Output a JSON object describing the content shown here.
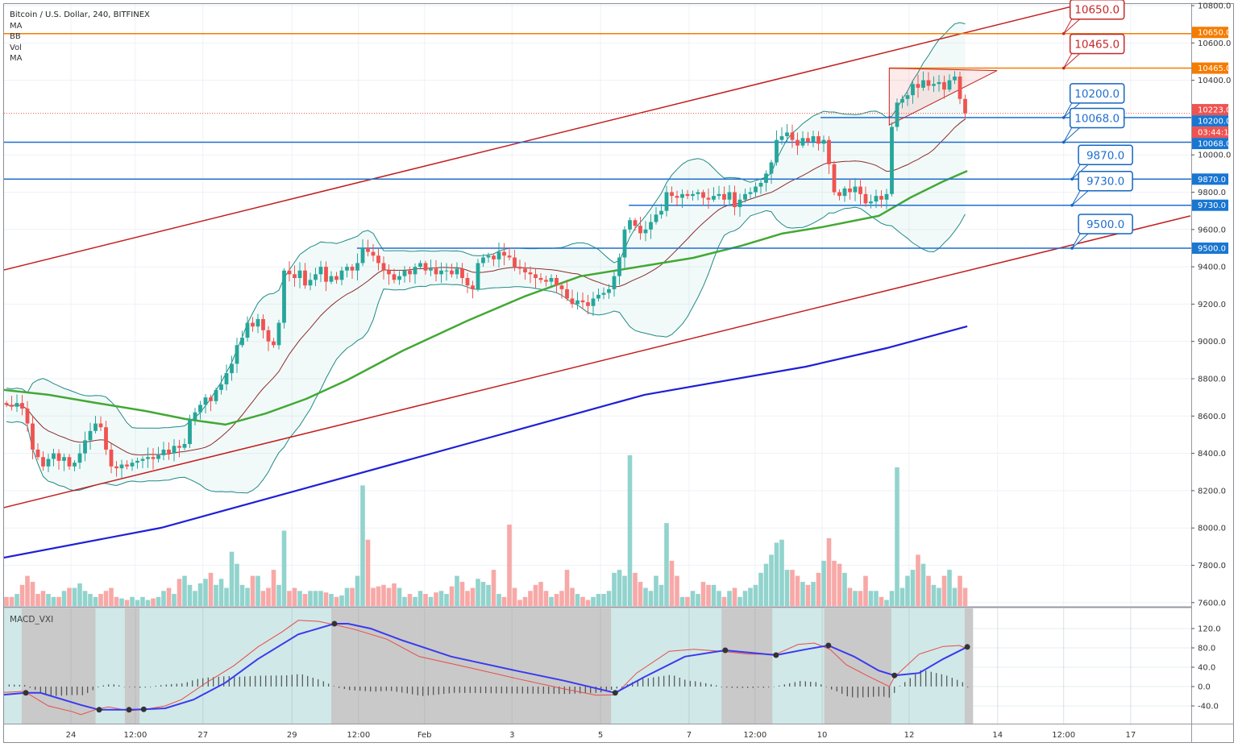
{
  "legend": {
    "title": "Bitcoin / U.S. Dollar, 240, BITFINEX",
    "items": [
      "MA",
      "BB",
      "Vol",
      "MA"
    ]
  },
  "macd_title": "MACD_VXI",
  "colors": {
    "up": "#26a69a",
    "down": "#ef5350",
    "bb": "#1e8a84",
    "bb_basis": "#8b2c2c",
    "ma_green": "#43a835",
    "ma_blue": "#1f1fd6",
    "channel": "#c21f1f",
    "orange": "#f57c00",
    "level_blue": "#1e6fd0",
    "macd_signal": "#3a3aee",
    "macd_line": "#e84b4b"
  },
  "chart_data": {
    "type": "candlestick",
    "symbol": "Bitcoin / U.S. Dollar, 240, BITFINEX",
    "ylim": [
      7560,
      10820
    ],
    "price_ticks": [
      10800,
      10600,
      10400,
      10000,
      9800,
      9600,
      9400,
      9200,
      9000,
      8800,
      8600,
      8400,
      8200,
      8000,
      7800,
      7600
    ],
    "time_ticks": [
      {
        "label": "24",
        "i": 12.3
      },
      {
        "label": "12:00",
        "i": 24.6
      },
      {
        "label": "27",
        "i": 37.5
      },
      {
        "label": "29",
        "i": 54.5
      },
      {
        "label": "12:00",
        "i": 67.2
      },
      {
        "label": "Feb",
        "i": 79.8
      },
      {
        "label": "3",
        "i": 96.5
      },
      {
        "label": "5",
        "i": 113.4
      },
      {
        "label": "7",
        "i": 130.3
      },
      {
        "label": "12:00",
        "i": 142.9
      },
      {
        "label": "10",
        "i": 155.7
      },
      {
        "label": "12",
        "i": 172.3
      },
      {
        "label": "14",
        "i": 189.2
      },
      {
        "label": "12:00",
        "i": 201.8
      },
      {
        "label": "17",
        "i": 214.6
      }
    ],
    "closes": [
      8660,
      8650,
      8670,
      8640,
      8560,
      8420,
      8380,
      8330,
      8370,
      8400,
      8360,
      8380,
      8330,
      8350,
      8400,
      8470,
      8520,
      8560,
      8540,
      8420,
      8330,
      8320,
      8340,
      8330,
      8350,
      8360,
      8370,
      8380,
      8370,
      8390,
      8420,
      8400,
      8440,
      8430,
      8450,
      8580,
      8620,
      8660,
      8700,
      8680,
      8740,
      8770,
      8830,
      8880,
      8980,
      9020,
      9100,
      9080,
      9120,
      9060,
      9000,
      8980,
      9100,
      9380,
      9360,
      9340,
      9380,
      9300,
      9330,
      9360,
      9400,
      9320,
      9350,
      9330,
      9380,
      9400,
      9380,
      9420,
      9500,
      9480,
      9460,
      9420,
      9380,
      9360,
      9330,
      9350,
      9380,
      9360,
      9400,
      9420,
      9380,
      9390,
      9360,
      9380,
      9380,
      9360,
      9390,
      9340,
      9300,
      9280,
      9420,
      9450,
      9460,
      9440,
      9480,
      9460,
      9450,
      9400,
      9390,
      9370,
      9360,
      9340,
      9330,
      9320,
      9340,
      9300,
      9280,
      9230,
      9200,
      9220,
      9210,
      9190,
      9230,
      9250,
      9260,
      9280,
      9350,
      9450,
      9600,
      9650,
      9620,
      9580,
      9600,
      9640,
      9680,
      9700,
      9800,
      9780,
      9770,
      9790,
      9780,
      9790,
      9800,
      9770,
      9760,
      9780,
      9790,
      9760,
      9800,
      9720,
      9760,
      9790,
      9800,
      9830,
      9850,
      9900,
      9960,
      10080,
      10100,
      10120,
      10080,
      10050,
      10090,
      10070,
      10100,
      10060,
      10080,
      9950,
      9800,
      9780,
      9820,
      9800,
      9830,
      9790,
      9740,
      9750,
      9780,
      9760,
      9790,
      10150,
      10280,
      10300,
      10320,
      10380,
      10360,
      10400,
      10370,
      10380,
      10390,
      10350,
      10400,
      10420,
      10300,
      10223
    ],
    "volume": [
      6,
      6,
      8,
      14,
      20,
      16,
      8,
      10,
      8,
      6,
      6,
      10,
      12,
      12,
      15,
      10,
      8,
      6,
      8,
      10,
      12,
      6,
      5,
      4,
      6,
      4,
      6,
      4,
      5,
      6,
      10,
      12,
      8,
      18,
      20,
      14,
      10,
      15,
      18,
      22,
      14,
      18,
      12,
      36,
      28,
      14,
      12,
      20,
      20,
      10,
      12,
      24,
      14,
      50,
      10,
      12,
      10,
      8,
      10,
      10,
      10,
      9,
      8,
      6,
      7,
      12,
      12,
      20,
      80,
      44,
      12,
      13,
      14,
      12,
      15,
      12,
      6,
      8,
      6,
      10,
      8,
      6,
      9,
      10,
      8,
      13,
      20,
      16,
      10,
      12,
      18,
      16,
      14,
      24,
      8,
      6,
      54,
      12,
      4,
      6,
      10,
      14,
      16,
      10,
      6,
      8,
      10,
      24,
      12,
      8,
      6,
      4,
      6,
      8,
      8,
      10,
      22,
      24,
      20,
      100,
      22,
      16,
      12,
      10,
      20,
      14,
      55,
      30,
      20,
      6,
      6,
      10,
      8,
      16,
      14,
      14,
      10,
      6,
      10,
      12,
      6,
      10,
      12,
      14,
      22,
      28,
      34,
      42,
      44,
      24,
      24,
      20,
      16,
      14,
      16,
      22,
      30,
      45,
      30,
      28,
      22,
      12,
      10,
      10,
      20,
      10,
      10,
      6,
      4,
      10,
      92,
      12,
      20,
      24,
      34,
      28,
      20,
      14,
      12,
      20,
      24,
      12,
      20,
      12
    ],
    "ma_green": [
      [
        -0.5,
        8740
      ],
      [
        8,
        8714
      ],
      [
        17.2,
        8670
      ],
      [
        26.5,
        8627
      ],
      [
        34.2,
        8584
      ],
      [
        41.8,
        8554
      ],
      [
        49.5,
        8614
      ],
      [
        57.2,
        8692
      ],
      [
        64.9,
        8791
      ],
      [
        75.7,
        8951
      ],
      [
        88,
        9111
      ],
      [
        98.8,
        9240
      ],
      [
        109.5,
        9349
      ],
      [
        121.8,
        9405
      ],
      [
        131.1,
        9448
      ],
      [
        140.3,
        9513
      ],
      [
        148,
        9578
      ],
      [
        155.7,
        9613
      ],
      [
        166.5,
        9673
      ],
      [
        172.6,
        9772
      ],
      [
        178.8,
        9858
      ],
      [
        183.4,
        9914
      ]
    ],
    "ma_blue": [
      [
        -0.5,
        7841
      ],
      [
        29.5,
        8001
      ],
      [
        60.3,
        8238
      ],
      [
        91.1,
        8476
      ],
      [
        121.8,
        8714
      ],
      [
        152.6,
        8865
      ],
      [
        168,
        8964
      ],
      [
        183.4,
        9081
      ]
    ],
    "channel": [
      {
        "from": [
          -0.5,
          9383
        ],
        "to": [
          203.4,
          10796
        ]
      },
      {
        "from": [
          -0.5,
          8109
        ],
        "to": [
          226,
          9673
        ]
      }
    ],
    "levels": [
      {
        "price": 10650,
        "label": "10650.0",
        "color": "orange",
        "start": -1,
        "callout": "red",
        "ci": 201.8
      },
      {
        "price": 10465,
        "label": "10465.0",
        "color": "orange",
        "start": 168.5,
        "callout": "red",
        "ci": 201.8
      },
      {
        "price": 10200,
        "label": "10200.0",
        "color": "level_blue",
        "start": 155.4,
        "callout": "blue",
        "ci": 201.8
      },
      {
        "price": 10068,
        "label": "10068.0",
        "color": "level_blue",
        "start": -1,
        "callout": "blue",
        "ci": 201.8
      },
      {
        "price": 9870,
        "label": "9870.0",
        "color": "level_blue",
        "start": -1,
        "callout": "blue",
        "ci": 203.4
      },
      {
        "price": 9730,
        "label": "9730.0",
        "color": "level_blue",
        "start": 118.8,
        "callout": "blue",
        "ci": 203.4
      },
      {
        "price": 9500,
        "label": "9500.0",
        "color": "level_blue",
        "start": 66.9,
        "callout": "blue",
        "ci": 203.4
      }
    ],
    "last_price": {
      "value": 10223,
      "label": "10223.0",
      "countdown": "03:44:17"
    },
    "pattern_triangle": [
      [
        168.5,
        10465
      ],
      [
        189.1,
        10452
      ],
      [
        168.5,
        10160
      ]
    ],
    "macd": {
      "ticks": [
        120,
        80,
        40,
        0,
        -40
      ],
      "tick_labels": [
        "120.0",
        "80.0",
        "40.0",
        "0.0",
        "-40.0"
      ],
      "signal": [
        [
          -0.5,
          -17
        ],
        [
          3.7,
          -13
        ],
        [
          6.5,
          -13
        ],
        [
          14.2,
          -38
        ],
        [
          17.7,
          -48
        ],
        [
          23.4,
          -48
        ],
        [
          26.2,
          -47
        ],
        [
          30.3,
          -45
        ],
        [
          35.7,
          -27
        ],
        [
          41.8,
          8
        ],
        [
          48,
          57
        ],
        [
          55.7,
          108
        ],
        [
          62.6,
          130
        ],
        [
          65.2,
          130
        ],
        [
          69.5,
          120
        ],
        [
          75.7,
          95
        ],
        [
          84.9,
          62
        ],
        [
          97.2,
          33
        ],
        [
          106.5,
          12
        ],
        [
          116.2,
          -13
        ],
        [
          121.8,
          20
        ],
        [
          129.5,
          62
        ],
        [
          137.2,
          75
        ],
        [
          146.9,
          65
        ],
        [
          152.6,
          77
        ],
        [
          156.9,
          85
        ],
        [
          161.8,
          62
        ],
        [
          166.5,
          33
        ],
        [
          169.5,
          23
        ],
        [
          174.2,
          28
        ],
        [
          178.8,
          57
        ],
        [
          183.4,
          82
        ]
      ],
      "line": [
        [
          -0.5,
          -12
        ],
        [
          3.4,
          -10
        ],
        [
          8,
          -40
        ],
        [
          12.6,
          -52
        ],
        [
          14.2,
          -58
        ],
        [
          17.2,
          -47
        ],
        [
          19.5,
          -42
        ],
        [
          23.4,
          -50
        ],
        [
          26.5,
          -47
        ],
        [
          30.3,
          -40
        ],
        [
          33.4,
          -27
        ],
        [
          38,
          7
        ],
        [
          43.4,
          43
        ],
        [
          48,
          82
        ],
        [
          52.6,
          113
        ],
        [
          55.7,
          137
        ],
        [
          59.5,
          135
        ],
        [
          62.6,
          128
        ],
        [
          66.5,
          118
        ],
        [
          72.6,
          98
        ],
        [
          78.8,
          62
        ],
        [
          88,
          40
        ],
        [
          97.2,
          17
        ],
        [
          106.5,
          -5
        ],
        [
          112.6,
          -18
        ],
        [
          116.2,
          -17
        ],
        [
          120.3,
          28
        ],
        [
          126.5,
          73
        ],
        [
          131.2,
          77
        ],
        [
          136.5,
          73
        ],
        [
          141.8,
          67
        ],
        [
          146.9,
          67
        ],
        [
          151.1,
          87
        ],
        [
          154.2,
          90
        ],
        [
          157.2,
          77
        ],
        [
          160.3,
          45
        ],
        [
          164.2,
          23
        ],
        [
          168.5,
          0
        ],
        [
          169.5,
          20
        ],
        [
          174.2,
          67
        ],
        [
          178.8,
          83
        ],
        [
          181.9,
          85
        ],
        [
          183.4,
          78
        ]
      ],
      "crosses": [
        3.7,
        17.7,
        23.4,
        26.2,
        62.6,
        116.2,
        137.2,
        146.9,
        156.9,
        169.5,
        183.4
      ],
      "bear_zones": [
        [
          2.9,
          17
        ],
        [
          22.6,
          25.4
        ],
        [
          62,
          115.4
        ],
        [
          136.5,
          146.2
        ],
        [
          156.1,
          168.9
        ],
        [
          182.9,
          184.5
        ]
      ]
    }
  }
}
